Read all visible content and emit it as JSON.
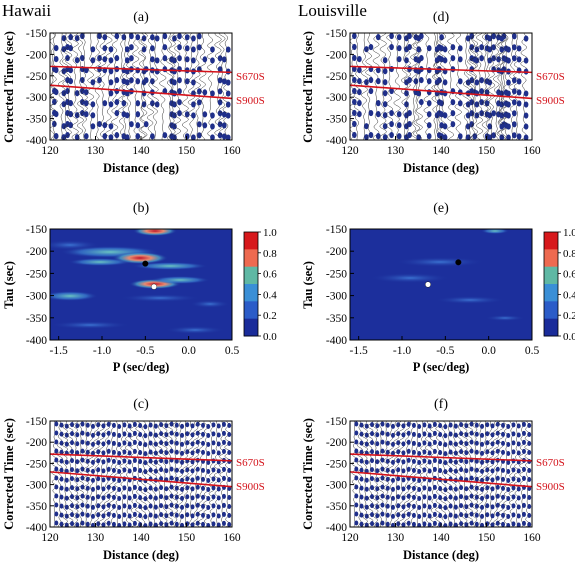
{
  "figure": {
    "columns": [
      {
        "title": "Hawaii"
      },
      {
        "title": "Louisville"
      }
    ],
    "panels": [
      {
        "id": "a",
        "label": "(a)",
        "type": "seismogram-section",
        "xlabel": "Distance (deg)",
        "ylabel": "Corrected Time (sec)",
        "xlim": [
          120,
          160
        ],
        "ylim": [
          -400,
          -150
        ],
        "xticks": [
          "120",
          "130",
          "140",
          "150",
          "160"
        ],
        "yticks": [
          "-150",
          "-200",
          "-250",
          "-300",
          "-350",
          "-400"
        ],
        "phases": [
          {
            "name": "S670S",
            "t_at_120": -228,
            "t_at_160": -242
          },
          {
            "name": "S900S",
            "t_at_120": -272,
            "t_at_160": -303
          }
        ]
      },
      {
        "id": "b",
        "label": "(b)",
        "type": "heatmap",
        "xlabel": "P (sec/deg)",
        "ylabel": "Tau (sec)",
        "xlim": [
          -1.6,
          0.5
        ],
        "ylim": [
          -400,
          -150
        ],
        "xticks": [
          "-1.5",
          "-1.0",
          "-0.5",
          "0.0",
          "0.5"
        ],
        "yticks": [
          "-150",
          "-200",
          "-250",
          "-300",
          "-350",
          "-400"
        ],
        "markers": [
          {
            "color": "black",
            "p": -0.5,
            "tau": -228
          },
          {
            "color": "white",
            "p": -0.4,
            "tau": -280
          }
        ]
      },
      {
        "id": "c",
        "label": "(c)",
        "type": "seismogram-section",
        "xlabel": "Distance (deg)",
        "ylabel": "Corrected Time (sec)",
        "xlim": [
          120,
          160
        ],
        "ylim": [
          -400,
          -150
        ],
        "xticks": [
          "120",
          "130",
          "140",
          "150",
          "160"
        ],
        "yticks": [
          "-150",
          "-200",
          "-250",
          "-300",
          "-350",
          "-400"
        ],
        "phases": [
          {
            "name": "S670S",
            "t_at_120": -228,
            "t_at_160": -244
          },
          {
            "name": "S900S",
            "t_at_120": -270,
            "t_at_160": -305
          }
        ]
      },
      {
        "id": "d",
        "label": "(d)",
        "type": "seismogram-section",
        "xlabel": "Distance (deg)",
        "ylabel": "Corrected Time (sec)",
        "xlim": [
          120,
          160
        ],
        "ylim": [
          -400,
          -150
        ],
        "xticks": [
          "120",
          "130",
          "140",
          "150",
          "160"
        ],
        "yticks": [
          "-150",
          "-200",
          "-250",
          "-300",
          "-350",
          "-400"
        ],
        "phases": [
          {
            "name": "S670S",
            "t_at_120": -228,
            "t_at_160": -242
          },
          {
            "name": "S900S",
            "t_at_120": -272,
            "t_at_160": -303
          }
        ]
      },
      {
        "id": "e",
        "label": "(e)",
        "type": "heatmap",
        "xlabel": "P (sec/deg)",
        "ylabel": "Tau (sec)",
        "xlim": [
          -1.6,
          0.5
        ],
        "ylim": [
          -400,
          -150
        ],
        "xticks": [
          "-1.5",
          "-1.0",
          "-0.5",
          "0.0",
          "0.5"
        ],
        "yticks": [
          "-150",
          "-200",
          "-250",
          "-300",
          "-350",
          "-400"
        ],
        "markers": [
          {
            "color": "black",
            "p": -0.35,
            "tau": -225
          },
          {
            "color": "white",
            "p": -0.7,
            "tau": -275
          }
        ]
      },
      {
        "id": "f",
        "label": "(f)",
        "type": "seismogram-section",
        "xlabel": "Distance (deg)",
        "ylabel": "Corrected Time (sec)",
        "xlim": [
          120,
          160
        ],
        "ylim": [
          -400,
          -150
        ],
        "xticks": [
          "120",
          "130",
          "140",
          "150",
          "160"
        ],
        "yticks": [
          "-150",
          "-200",
          "-250",
          "-300",
          "-350",
          "-400"
        ],
        "phases": [
          {
            "name": "S670S",
            "t_at_120": -228,
            "t_at_160": -244
          },
          {
            "name": "S900S",
            "t_at_120": -270,
            "t_at_160": -305
          }
        ]
      }
    ],
    "colorbar": {
      "ticks": [
        "1.0",
        "0.8",
        "0.6",
        "0.4",
        "0.2",
        "0.0"
      ],
      "colors": [
        "#d7191c",
        "#ee6a50",
        "#5fb8a4",
        "#3a8fd6",
        "#2b5cc8",
        "#1a2c9a"
      ]
    },
    "colors": {
      "phase_line": "#d4121a",
      "trace_fill": "#1f2f8a",
      "trace_line": "#222222",
      "heat_bg": "#1c2f9c"
    }
  }
}
